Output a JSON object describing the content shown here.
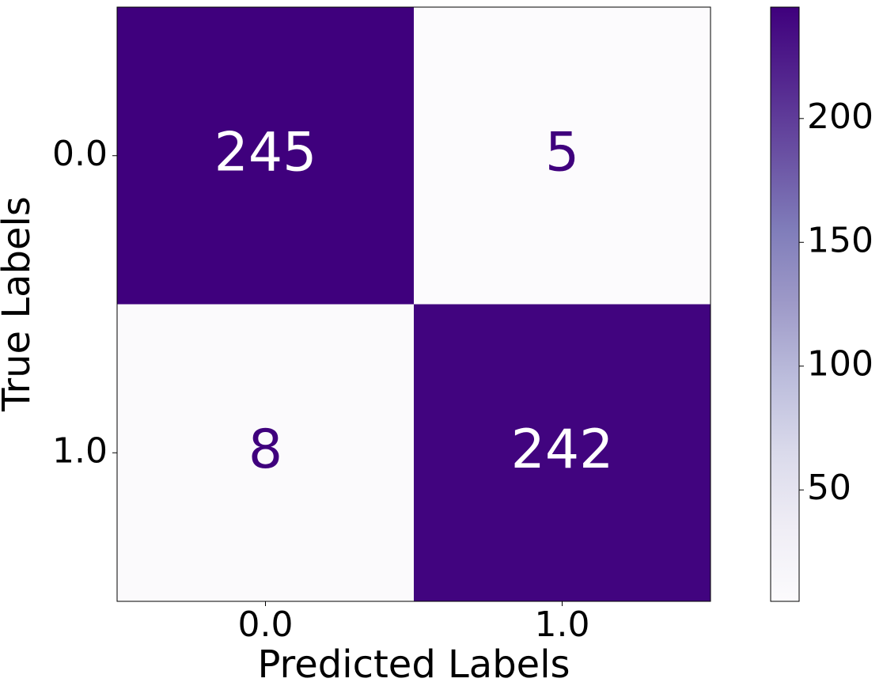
{
  "chart_data": {
    "type": "heatmap",
    "x_label": "Predicted Labels",
    "y_label": "True Labels",
    "x_categories": [
      "0.0",
      "1.0"
    ],
    "y_categories": [
      "0.0",
      "1.0"
    ],
    "values": [
      [
        245,
        5
      ],
      [
        8,
        242
      ]
    ],
    "zlim": [
      5,
      245
    ],
    "colorbar_ticks": [
      50,
      100,
      150,
      200
    ],
    "cmap": [
      "#fcfbfd",
      "#efedf5",
      "#dadaeb",
      "#bcbddc",
      "#9e9ac8",
      "#807dba",
      "#6a51a3",
      "#54278f",
      "#3f007d"
    ]
  }
}
